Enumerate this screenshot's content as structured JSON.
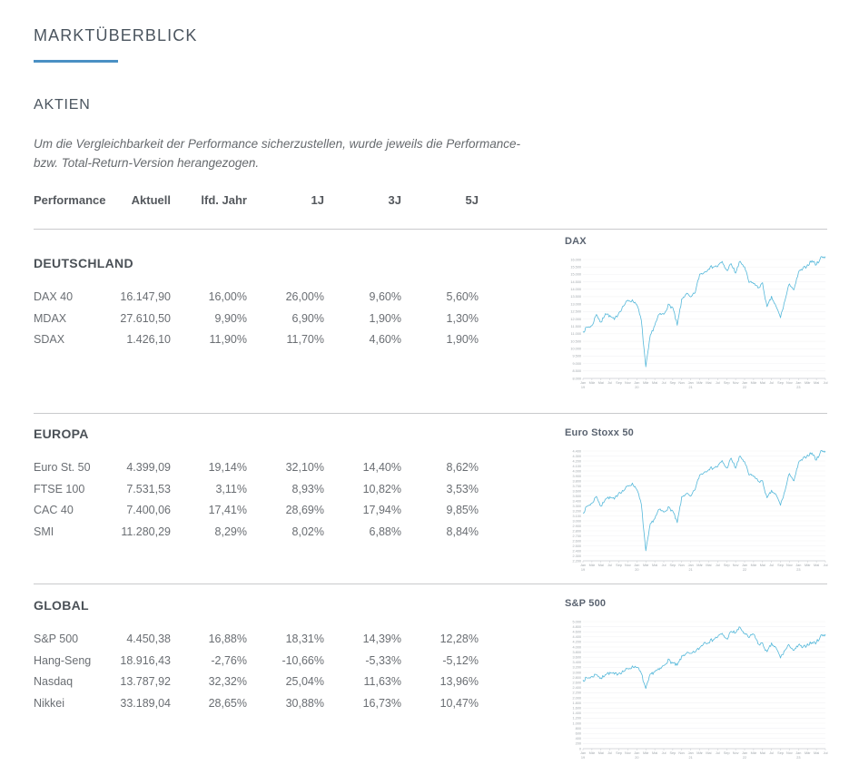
{
  "header": {
    "title": "MARKTÜBERBLICK",
    "accent_color": "#4a90c4",
    "section_title": "AKTIEN",
    "note_lines": [
      "Um die Vergleichbarkeit der Performance sicherzustellen, wurde jeweils die Performance-",
      "bzw. Total-Return-Version herangezogen."
    ]
  },
  "table": {
    "columns": [
      "Performance",
      "Aktuell",
      "lfd. Jahr",
      "1J",
      "3J",
      "5J"
    ],
    "sections": [
      {
        "title": "DEUTSCHLAND",
        "rows": [
          [
            "DAX 40",
            "16.147,90",
            "16,00%",
            "26,00%",
            "9,60%",
            "5,60%"
          ],
          [
            "MDAX",
            "27.610,50",
            "9,90%",
            "6,90%",
            "1,90%",
            "1,30%"
          ],
          [
            "SDAX",
            "1.426,10",
            "11,90%",
            "11,70%",
            "4,60%",
            "1,90%"
          ]
        ]
      },
      {
        "title": "EUROPA",
        "rows": [
          [
            "Euro St. 50",
            "4.399,09",
            "19,14%",
            "32,10%",
            "14,40%",
            "8,62%"
          ],
          [
            "FTSE 100",
            "7.531,53",
            "3,11%",
            "8,93%",
            "10,82%",
            "3,53%"
          ],
          [
            "CAC 40",
            "7.400,06",
            "17,41%",
            "28,69%",
            "17,94%",
            "9,85%"
          ],
          [
            "SMI",
            "11.280,29",
            "8,29%",
            "8,02%",
            "6,88%",
            "8,84%"
          ]
        ]
      },
      {
        "title": "GLOBAL",
        "rows": [
          [
            "S&P 500",
            "4.450,38",
            "16,88%",
            "18,31%",
            "14,39%",
            "12,28%"
          ],
          [
            "Hang-Seng",
            "18.916,43",
            "-2,76%",
            "-10,66%",
            "-5,33%",
            "-5,12%"
          ],
          [
            "Nasdaq",
            "13.787,92",
            "32,32%",
            "25,04%",
            "11,63%",
            "13,96%"
          ],
          [
            "Nikkei",
            "33.189,04",
            "28,65%",
            "30,88%",
            "16,73%",
            "10,47%"
          ]
        ]
      }
    ]
  },
  "chart_data": [
    {
      "type": "line",
      "title": "DAX",
      "xlabel": "",
      "ylabel": "",
      "legend": "none",
      "grid": true,
      "line_color": "#55b8da",
      "ylim": [
        8000,
        16000
      ],
      "y_step": 500,
      "x_start": "Jan 2019",
      "x_end": "Jul 2023",
      "freq": "monthly",
      "x_labels": [
        "Jan 19",
        "Mär",
        "Mai",
        "Jul",
        "Sep",
        "Nov",
        "Jan 20",
        "Mär",
        "Mai",
        "Jul",
        "Sep",
        "Nov",
        "Jan 21",
        "Mär",
        "Mai",
        "Jul",
        "Sep",
        "Nov",
        "Jan 22",
        "Mär",
        "Mai",
        "Jul",
        "Sep",
        "Nov",
        "Jan 23",
        "Mär",
        "Mai",
        "Jul"
      ],
      "values": [
        11150,
        11450,
        11530,
        12340,
        11730,
        12400,
        12190,
        11940,
        12430,
        12870,
        13240,
        13250,
        13000,
        11890,
        8740,
        10860,
        11590,
        12310,
        12310,
        12950,
        12760,
        11560,
        13290,
        13720,
        13430,
        13790,
        15010,
        15140,
        15420,
        15530,
        15540,
        15840,
        15260,
        15690,
        15100,
        15880,
        15470,
        14460,
        14410,
        14100,
        14390,
        12780,
        13480,
        12830,
        12110,
        13250,
        14400,
        13920,
        15130,
        15370,
        15630,
        15920,
        15660,
        16150,
        16200
      ]
    },
    {
      "type": "line",
      "title": "Euro Stoxx 50",
      "xlabel": "",
      "ylabel": "",
      "legend": "none",
      "grid": true,
      "line_color": "#55b8da",
      "ylim": [
        2200,
        4400
      ],
      "y_step": 100,
      "x_start": "Jan 2019",
      "x_end": "Jul 2023",
      "freq": "monthly",
      "x_labels": [
        "Jan 19",
        "Mär",
        "Mai",
        "Jul",
        "Sep",
        "Nov",
        "Jan 20",
        "Mär",
        "Mai",
        "Jul",
        "Sep",
        "Nov",
        "Jan 21",
        "Mär",
        "Mai",
        "Jul",
        "Sep",
        "Nov",
        "Jan 22",
        "Mär",
        "Mai",
        "Jul",
        "Sep",
        "Nov",
        "Jan 23",
        "Mär",
        "Mai",
        "Jul"
      ],
      "values": [
        3160,
        3300,
        3350,
        3500,
        3280,
        3450,
        3470,
        3430,
        3570,
        3600,
        3700,
        3745,
        3640,
        3330,
        2390,
        2930,
        3050,
        3230,
        3175,
        3270,
        3195,
        2960,
        3470,
        3550,
        3480,
        3640,
        3920,
        3975,
        4040,
        4060,
        4090,
        4200,
        4050,
        4250,
        4060,
        4300,
        4175,
        3920,
        3900,
        3800,
        3790,
        3450,
        3600,
        3520,
        3320,
        3600,
        3960,
        3790,
        4160,
        4240,
        4315,
        4360,
        4220,
        4400,
        4400
      ]
    },
    {
      "type": "line",
      "title": "S&P 500",
      "xlabel": "",
      "ylabel": "",
      "legend": "none",
      "grid": true,
      "line_color": "#55b8da",
      "ylim": [
        0,
        5000
      ],
      "y_step": 200,
      "x_start": "Jan 2019",
      "x_end": "Jul 2023",
      "freq": "monthly",
      "x_labels": [
        "Jan 19",
        "Mär",
        "Mai",
        "Jul",
        "Sep",
        "Nov",
        "Jan 20",
        "Mär",
        "Mai",
        "Jul",
        "Sep",
        "Nov",
        "Jan 21",
        "Mär",
        "Mai",
        "Jul",
        "Sep",
        "Nov",
        "Jan 22",
        "Mär",
        "Mai",
        "Jul",
        "Sep",
        "Nov",
        "Jan 23",
        "Mär",
        "Mai",
        "Jul"
      ],
      "values": [
        2700,
        2780,
        2830,
        2940,
        2750,
        2940,
        2980,
        2920,
        2980,
        3040,
        3140,
        3230,
        3225,
        2950,
        2340,
        2910,
        3040,
        3100,
        3270,
        3500,
        3360,
        3270,
        3620,
        3760,
        3715,
        3810,
        3970,
        4180,
        4200,
        4300,
        4400,
        4520,
        4310,
        4600,
        4570,
        4770,
        4515,
        4370,
        4530,
        4130,
        4130,
        3785,
        4130,
        3955,
        3585,
        3870,
        4080,
        3840,
        4080,
        3970,
        4110,
        4170,
        4180,
        4450,
        4500
      ]
    }
  ]
}
